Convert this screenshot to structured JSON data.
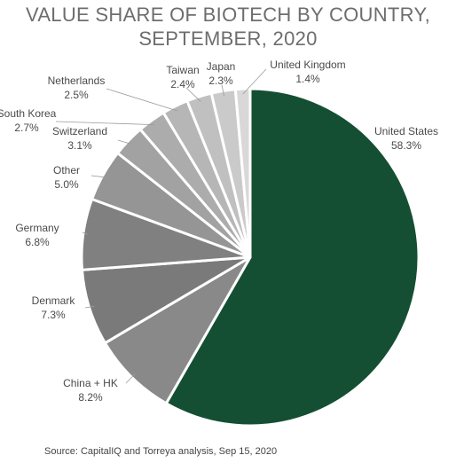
{
  "chart_data": {
    "type": "pie",
    "title_line1": "VALUE SHARE OF BIOTECH BY COUNTRY,",
    "title_line2": "SEPTEMBER, 2020",
    "source": "Source: CapitalIQ and Torreya analysis, Sep 15, 2020",
    "slices": [
      {
        "label": "United States",
        "value_label": "58.3%",
        "value": 58.3,
        "color": "#144f33"
      },
      {
        "label": "China + HK",
        "value_label": "8.2%",
        "value": 8.2,
        "color": "#898989"
      },
      {
        "label": "Denmark",
        "value_label": "7.3%",
        "value": 7.3,
        "color": "#7a7a7a"
      },
      {
        "label": "Germany",
        "value_label": "6.8%",
        "value": 6.8,
        "color": "#808080"
      },
      {
        "label": "Other",
        "value_label": "5.0%",
        "value": 5.0,
        "color": "#959595"
      },
      {
        "label": "Switzerland",
        "value_label": "3.1%",
        "value": 3.1,
        "color": "#a2a2a2"
      },
      {
        "label": "South Korea",
        "value_label": "2.7%",
        "value": 2.7,
        "color": "#acacac"
      },
      {
        "label": "Netherlands",
        "value_label": "2.5%",
        "value": 2.5,
        "color": "#b6b6b6"
      },
      {
        "label": "Taiwan",
        "value_label": "2.4%",
        "value": 2.4,
        "color": "#c0c0c0"
      },
      {
        "label": "Japan",
        "value_label": "2.3%",
        "value": 2.3,
        "color": "#cacaca"
      },
      {
        "label": "United Kingdom",
        "value_label": "1.4%",
        "value": 1.4,
        "color": "#d8d8d8"
      }
    ]
  }
}
